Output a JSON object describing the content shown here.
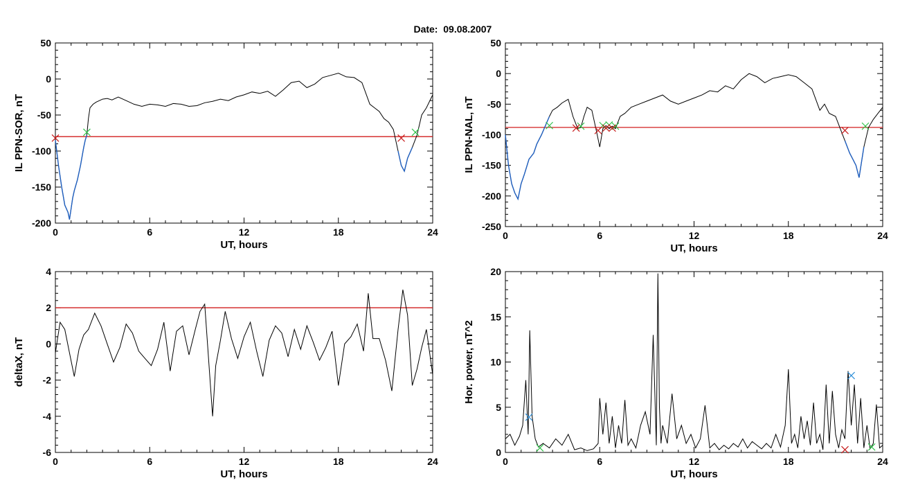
{
  "header": {
    "date_label": "Date:",
    "date_value": "09.08.2007"
  },
  "colors": {
    "trace": "#000000",
    "highlight": "#1f5fbf",
    "threshold": "#d21e1e",
    "marker_start": "#2fc24a",
    "marker_end": "#c81e1e",
    "marker_peak": "#2f8fd8"
  },
  "chart_data": [
    {
      "type": "line",
      "panel": "top-left",
      "xlabel": "UT, hours",
      "ylabel": "IL PPN-SOR, nT",
      "xlim": [
        0,
        24
      ],
      "ylim": [
        -200,
        50
      ],
      "xticks": [
        0,
        6,
        12,
        18,
        24
      ],
      "yticks": [
        -200,
        -150,
        -100,
        -50,
        0,
        50
      ],
      "threshold": -80,
      "series": [
        {
          "x": [
            0,
            0.2,
            0.4,
            0.6,
            0.8,
            0.9,
            1.0,
            1.1,
            1.2,
            1.4,
            1.6,
            1.8,
            1.9,
            2.0,
            2.1,
            2.2,
            2.4,
            2.6,
            2.8,
            3.0,
            3.3,
            3.6,
            4.0,
            4.5,
            5.0,
            5.5,
            6.0,
            6.5,
            7.0,
            7.5,
            8.0,
            8.5,
            9.0,
            9.5,
            10.0,
            10.5,
            11.0,
            11.5,
            12.0,
            12.5,
            13.0,
            13.5,
            14.0,
            14.5,
            15.0,
            15.5,
            16.0,
            16.5,
            17.0,
            17.5,
            18.0,
            18.5,
            19.0,
            19.5,
            20.0,
            20.3,
            20.6,
            20.9,
            21.2,
            21.5,
            21.8,
            22.0,
            22.2,
            22.4,
            22.7,
            23.0,
            23.3,
            23.6,
            24.0
          ],
          "y": [
            -85,
            -120,
            -150,
            -175,
            -185,
            -195,
            -180,
            -165,
            -155,
            -140,
            -120,
            -95,
            -85,
            -78,
            -55,
            -40,
            -35,
            -32,
            -30,
            -28,
            -27,
            -29,
            -25,
            -30,
            -35,
            -38,
            -35,
            -36,
            -38,
            -34,
            -35,
            -38,
            -37,
            -33,
            -31,
            -28,
            -30,
            -25,
            -22,
            -18,
            -20,
            -17,
            -24,
            -15,
            -5,
            -3,
            -12,
            -7,
            2,
            5,
            8,
            3,
            2,
            -5,
            -35,
            -40,
            -45,
            -55,
            -60,
            -70,
            -100,
            -120,
            -128,
            -110,
            -95,
            -78,
            -50,
            -40,
            -22
          ]
        }
      ],
      "highlight_ranges": [
        [
          0,
          2.0
        ],
        [
          21.8,
          22.9
        ]
      ],
      "crossings_start": [
        [
          2.0,
          -74
        ],
        [
          22.9,
          -74
        ]
      ],
      "crossings_end": [
        [
          0.0,
          -82
        ],
        [
          22.0,
          -82
        ]
      ]
    },
    {
      "type": "line",
      "panel": "top-right",
      "xlabel": "UT, hours",
      "ylabel": "IL PPN-NAL, nT",
      "xlim": [
        0,
        24
      ],
      "ylim": [
        -250,
        50
      ],
      "xticks": [
        0,
        6,
        12,
        18,
        24
      ],
      "yticks": [
        -250,
        -200,
        -150,
        -100,
        -50,
        0,
        50
      ],
      "threshold": -88,
      "series": [
        {
          "x": [
            0,
            0.2,
            0.4,
            0.6,
            0.8,
            1.0,
            1.2,
            1.5,
            1.8,
            2.0,
            2.3,
            2.6,
            2.8,
            3.0,
            3.3,
            3.6,
            4.0,
            4.3,
            4.6,
            4.8,
            5.0,
            5.2,
            5.5,
            5.8,
            6.0,
            6.2,
            6.4,
            6.6,
            6.8,
            7.0,
            7.3,
            7.6,
            8.0,
            8.5,
            9.0,
            9.5,
            10.0,
            10.5,
            11.0,
            11.5,
            12.0,
            12.5,
            13.0,
            13.5,
            14.0,
            14.5,
            15.0,
            15.5,
            16.0,
            16.5,
            17.0,
            17.5,
            18.0,
            18.5,
            19.0,
            19.5,
            20.0,
            20.3,
            20.6,
            21.0,
            21.3,
            21.6,
            21.9,
            22.1,
            22.3,
            22.5,
            22.8,
            23.1,
            23.4,
            23.7,
            24.0
          ],
          "y": [
            -100,
            -150,
            -180,
            -195,
            -205,
            -180,
            -165,
            -140,
            -130,
            -115,
            -100,
            -82,
            -70,
            -60,
            -55,
            -48,
            -42,
            -70,
            -90,
            -88,
            -70,
            -55,
            -60,
            -95,
            -120,
            -90,
            -85,
            -90,
            -86,
            -90,
            -70,
            -65,
            -55,
            -50,
            -45,
            -40,
            -35,
            -45,
            -50,
            -45,
            -40,
            -35,
            -28,
            -30,
            -20,
            -25,
            -10,
            0,
            -5,
            -15,
            -8,
            -5,
            -2,
            -5,
            -15,
            -25,
            -60,
            -50,
            -65,
            -70,
            -90,
            -110,
            -130,
            -140,
            -150,
            -170,
            -120,
            -88,
            -75,
            -65,
            -55
          ]
        }
      ],
      "highlight_ranges": [
        [
          0,
          2.8
        ],
        [
          21.6,
          22.9
        ]
      ],
      "crossings_start": [
        [
          2.8,
          -85
        ],
        [
          4.8,
          -86
        ],
        [
          6.2,
          -85
        ],
        [
          6.6,
          -84
        ],
        [
          7.0,
          -86
        ],
        [
          22.9,
          -86
        ]
      ],
      "crossings_end": [
        [
          4.5,
          -89
        ],
        [
          5.9,
          -93
        ],
        [
          6.4,
          -89
        ],
        [
          6.8,
          -89
        ],
        [
          21.6,
          -93
        ]
      ]
    },
    {
      "type": "line",
      "panel": "bottom-left",
      "xlabel": "UT, hours",
      "ylabel": "deltaX, nT",
      "xlim": [
        0,
        24
      ],
      "ylim": [
        -6,
        4
      ],
      "xticks": [
        0,
        6,
        12,
        18,
        24
      ],
      "yticks": [
        -6,
        -4,
        -2,
        0,
        2,
        4
      ],
      "threshold": 2,
      "series": [
        {
          "x": [
            0,
            0.3,
            0.6,
            0.9,
            1.2,
            1.5,
            1.8,
            2.1,
            2.5,
            2.9,
            3.3,
            3.7,
            4.1,
            4.5,
            4.9,
            5.3,
            5.7,
            6.1,
            6.5,
            6.9,
            7.3,
            7.7,
            8.1,
            8.5,
            8.9,
            9.2,
            9.5,
            9.8,
            10.0,
            10.2,
            10.5,
            10.8,
            11.2,
            11.6,
            12.0,
            12.4,
            12.8,
            13.2,
            13.6,
            14.0,
            14.4,
            14.8,
            15.2,
            15.6,
            16.0,
            16.4,
            16.8,
            17.2,
            17.6,
            18.0,
            18.4,
            18.8,
            19.2,
            19.6,
            19.9,
            20.2,
            20.6,
            21.0,
            21.4,
            21.8,
            22.1,
            22.4,
            22.7,
            23.0,
            23.3,
            23.6,
            24.0
          ],
          "y": [
            -0.5,
            1.2,
            0.8,
            -0.5,
            -1.8,
            -0.3,
            0.5,
            0.8,
            1.7,
            1.0,
            0.0,
            -1.0,
            -0.2,
            1.1,
            0.6,
            -0.4,
            -0.8,
            -1.2,
            -0.3,
            1.2,
            -1.5,
            0.7,
            1.0,
            -0.6,
            0.8,
            1.8,
            2.2,
            -1.5,
            -4.0,
            -1.2,
            0.2,
            1.8,
            0.3,
            -0.8,
            0.4,
            1.2,
            -0.4,
            -1.8,
            0.2,
            1.0,
            0.6,
            -0.7,
            0.8,
            -0.3,
            1.0,
            0.1,
            -0.9,
            -0.2,
            0.7,
            -2.3,
            0.0,
            0.4,
            1.1,
            -0.4,
            2.8,
            0.3,
            0.3,
            -0.9,
            -2.6,
            0.8,
            3.0,
            1.6,
            -2.3,
            -1.4,
            -0.2,
            0.8,
            -1.7
          ]
        }
      ]
    },
    {
      "type": "line",
      "panel": "bottom-right",
      "xlabel": "UT, hours",
      "ylabel": "Hor. power, nT^2",
      "xlim": [
        0,
        24
      ],
      "ylim": [
        0,
        20
      ],
      "xticks": [
        0,
        6,
        12,
        18,
        24
      ],
      "yticks": [
        0,
        5,
        10,
        15,
        20
      ],
      "series": [
        {
          "x": [
            0,
            0.3,
            0.6,
            0.9,
            1.1,
            1.3,
            1.45,
            1.55,
            1.7,
            1.9,
            2.1,
            2.4,
            2.8,
            3.2,
            3.6,
            4.0,
            4.4,
            4.8,
            5.2,
            5.6,
            5.9,
            6.0,
            6.2,
            6.4,
            6.6,
            6.8,
            7.0,
            7.2,
            7.4,
            7.6,
            7.8,
            8.0,
            8.3,
            8.6,
            8.9,
            9.2,
            9.4,
            9.6,
            9.7,
            9.8,
            9.9,
            10.0,
            10.3,
            10.6,
            10.9,
            11.2,
            11.5,
            11.8,
            12.1,
            12.4,
            12.7,
            13.0,
            13.3,
            13.6,
            13.9,
            14.2,
            14.5,
            14.8,
            15.1,
            15.4,
            15.7,
            16.0,
            16.3,
            16.6,
            16.9,
            17.2,
            17.5,
            17.8,
            18.0,
            18.2,
            18.4,
            18.6,
            18.8,
            19.0,
            19.2,
            19.4,
            19.6,
            19.8,
            20.0,
            20.2,
            20.4,
            20.6,
            20.8,
            21.0,
            21.2,
            21.4,
            21.6,
            21.8,
            22.0,
            22.2,
            22.4,
            22.6,
            22.8,
            23.0,
            23.2,
            23.4,
            23.6,
            23.8,
            24.0
          ],
          "y": [
            1.5,
            2.0,
            0.8,
            1.8,
            3.0,
            8.0,
            2.0,
            13.5,
            4.0,
            1.5,
            0.6,
            1.0,
            0.5,
            1.5,
            0.8,
            2.0,
            0.3,
            0.5,
            0.2,
            0.4,
            1.0,
            6.0,
            2.0,
            5.5,
            1.0,
            4.0,
            0.5,
            3.0,
            1.0,
            5.8,
            0.8,
            1.5,
            0.5,
            3.0,
            4.5,
            2.0,
            13.0,
            0.8,
            19.8,
            5.0,
            1.0,
            3.0,
            1.0,
            6.5,
            1.5,
            3.0,
            1.0,
            2.0,
            0.5,
            1.5,
            5.2,
            0.5,
            1.0,
            0.3,
            0.8,
            0.4,
            1.0,
            0.6,
            1.5,
            0.5,
            1.2,
            0.8,
            0.4,
            1.0,
            0.5,
            2.0,
            0.6,
            3.0,
            9.2,
            1.0,
            2.0,
            0.5,
            4.0,
            1.5,
            3.5,
            0.8,
            5.5,
            1.0,
            2.0,
            0.3,
            7.5,
            1.0,
            6.8,
            2.0,
            0.5,
            2.5,
            1.5,
            9.0,
            3.0,
            7.5,
            1.0,
            6.0,
            0.5,
            3.0,
            0.4,
            1.0,
            5.3,
            0.5,
            0.8
          ]
        }
      ],
      "markers_peak": [
        [
          1.5,
          3.9
        ],
        [
          22.0,
          8.5
        ]
      ],
      "markers_start": [
        [
          2.2,
          0.5
        ],
        [
          23.3,
          0.6
        ]
      ],
      "markers_end": [
        [
          21.6,
          0.3
        ]
      ]
    }
  ]
}
